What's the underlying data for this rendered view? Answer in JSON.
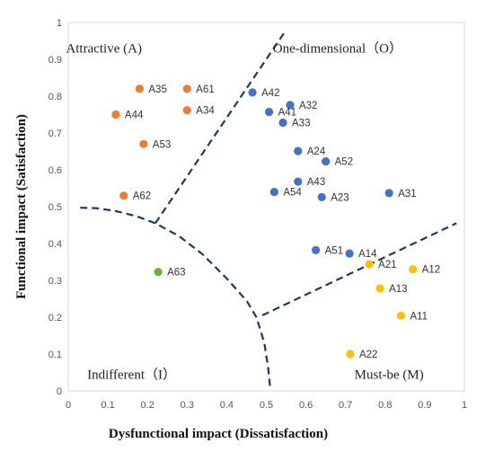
{
  "chart_data": {
    "type": "scatter",
    "xlabel": "Dysfunctional impact (Dissatisfaction)",
    "ylabel": "Functional impact (Satisfaction)",
    "xlim": [
      0,
      1
    ],
    "ylim": [
      0,
      1
    ],
    "xticks": [
      "0",
      "0.1",
      "0.2",
      "0.3",
      "0.4",
      "0.5",
      "0.6",
      "0.7",
      "0.8",
      "0.9",
      "1"
    ],
    "yticks": [
      "0",
      "0.1",
      "0.2",
      "0.3",
      "0.4",
      "0.5",
      "0.6",
      "0.7",
      "0.8",
      "0.9",
      "1"
    ],
    "grid": false,
    "colors": {
      "A": "#ED7D31",
      "O": "#4472C4",
      "I": "#70AD47",
      "M": "#FFC000",
      "boundary": "#1F3864"
    },
    "regions": [
      {
        "key": "A",
        "label": "Attractive (A)",
        "x": 0.09,
        "y": 0.93
      },
      {
        "key": "O",
        "label": "One-dimensional（O）",
        "x": 0.68,
        "y": 0.93
      },
      {
        "key": "I",
        "label": "Indifferent（I）",
        "x": 0.16,
        "y": 0.045
      },
      {
        "key": "M",
        "label": "Must-be (M)",
        "x": 0.81,
        "y": 0.045
      }
    ],
    "points": [
      {
        "label": "A35",
        "x": 0.18,
        "y": 0.82,
        "cat": "A"
      },
      {
        "label": "A61",
        "x": 0.3,
        "y": 0.82,
        "cat": "A"
      },
      {
        "label": "A44",
        "x": 0.12,
        "y": 0.75,
        "cat": "A"
      },
      {
        "label": "A34",
        "x": 0.3,
        "y": 0.762,
        "cat": "A"
      },
      {
        "label": "A53",
        "x": 0.19,
        "y": 0.67,
        "cat": "A"
      },
      {
        "label": "A62",
        "x": 0.14,
        "y": 0.53,
        "cat": "A"
      },
      {
        "label": "A42",
        "x": 0.465,
        "y": 0.81,
        "cat": "O"
      },
      {
        "label": "A32",
        "x": 0.56,
        "y": 0.776,
        "cat": "O"
      },
      {
        "label": "A41",
        "x": 0.507,
        "y": 0.757,
        "cat": "O"
      },
      {
        "label": "A33",
        "x": 0.542,
        "y": 0.728,
        "cat": "O"
      },
      {
        "label": "A24",
        "x": 0.58,
        "y": 0.651,
        "cat": "O"
      },
      {
        "label": "A52",
        "x": 0.65,
        "y": 0.623,
        "cat": "O"
      },
      {
        "label": "A43",
        "x": 0.58,
        "y": 0.568,
        "cat": "O"
      },
      {
        "label": "A54",
        "x": 0.52,
        "y": 0.54,
        "cat": "O"
      },
      {
        "label": "A23",
        "x": 0.64,
        "y": 0.526,
        "cat": "O"
      },
      {
        "label": "A31",
        "x": 0.81,
        "y": 0.537,
        "cat": "O"
      },
      {
        "label": "A51",
        "x": 0.625,
        "y": 0.382,
        "cat": "O"
      },
      {
        "label": "A14",
        "x": 0.71,
        "y": 0.373,
        "cat": "O"
      },
      {
        "label": "A63",
        "x": 0.227,
        "y": 0.323,
        "cat": "I"
      },
      {
        "label": "A21",
        "x": 0.76,
        "y": 0.344,
        "cat": "M"
      },
      {
        "label": "A12",
        "x": 0.87,
        "y": 0.33,
        "cat": "M"
      },
      {
        "label": "A13",
        "x": 0.787,
        "y": 0.278,
        "cat": "M"
      },
      {
        "label": "A11",
        "x": 0.84,
        "y": 0.204,
        "cat": "M"
      },
      {
        "label": "A22",
        "x": 0.712,
        "y": 0.1,
        "cat": "M"
      }
    ],
    "boundaries": [
      {
        "name": "A-O boundary",
        "points": [
          [
            0.22,
            0.455
          ],
          [
            0.55,
            0.98
          ]
        ]
      },
      {
        "name": "M-O boundary",
        "points": [
          [
            0.49,
            0.205
          ],
          [
            0.98,
            0.455
          ]
        ]
      },
      {
        "name": "I boundary",
        "points": [
          [
            0.03,
            0.497
          ],
          [
            0.07,
            0.496
          ],
          [
            0.12,
            0.488
          ],
          [
            0.17,
            0.475
          ],
          [
            0.22,
            0.455
          ],
          [
            0.28,
            0.42
          ],
          [
            0.34,
            0.37
          ],
          [
            0.4,
            0.305
          ],
          [
            0.45,
            0.245
          ],
          [
            0.475,
            0.2
          ],
          [
            0.495,
            0.13
          ],
          [
            0.505,
            0.06
          ],
          [
            0.51,
            0.005
          ]
        ]
      }
    ]
  }
}
